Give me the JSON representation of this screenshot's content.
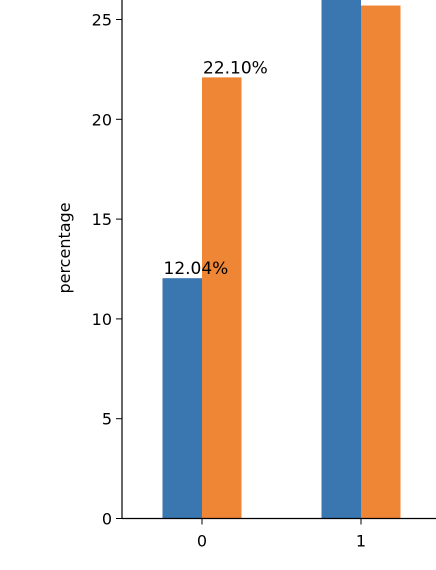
{
  "chart_data": {
    "type": "bar",
    "title": "",
    "xlabel": "",
    "ylabel": "percentage",
    "categories": [
      "0",
      "1"
    ],
    "series": [
      {
        "color": "#3a76af",
        "values": [
          12.04,
          26.5
        ]
      },
      {
        "color": "#ef8636",
        "values": [
          22.1,
          25.7
        ]
      }
    ],
    "data_labels": [
      {
        "category": "0",
        "series_index": 0,
        "value": 12.04,
        "text": "12.04%"
      },
      {
        "category": "0",
        "series_index": 1,
        "value": 22.1,
        "text": "22.10%"
      }
    ],
    "ylim": [
      0,
      25.98
    ],
    "yticks": [
      {
        "value": 0,
        "label": "0"
      },
      {
        "value": 5,
        "label": "5"
      },
      {
        "value": 10,
        "label": "10"
      },
      {
        "value": 15,
        "label": "15"
      },
      {
        "value": 20,
        "label": "20"
      },
      {
        "value": 25,
        "label": "25"
      }
    ],
    "grid": false,
    "legend": "none"
  }
}
